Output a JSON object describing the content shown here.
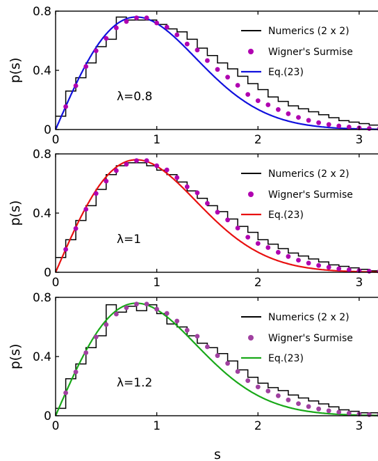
{
  "figure": {
    "xlabel": "s"
  },
  "chart_data": [
    {
      "type": "line",
      "ylabel": "p(s)",
      "xlim": [
        0,
        3.2
      ],
      "ylim": [
        0,
        0.8
      ],
      "xticks": [
        0,
        1,
        2,
        3
      ],
      "yticks": [
        0,
        0.4,
        0.8
      ],
      "annotation": "λ=0.8",
      "legend": [
        "Numerics (2 x 2)",
        "Wigner's Surmise",
        "Eq.(23)"
      ],
      "legend_position": "top-right",
      "curve_color": "#1010dd",
      "marker_color": "#b000b0",
      "curve_params": {
        "a": 1.571,
        "b": 0.785
      },
      "histogram": {
        "bin_width": 0.1,
        "values": [
          0.09,
          0.26,
          0.35,
          0.45,
          0.56,
          0.61,
          0.76,
          0.74,
          0.74,
          0.74,
          0.71,
          0.68,
          0.66,
          0.61,
          0.55,
          0.5,
          0.45,
          0.41,
          0.36,
          0.31,
          0.27,
          0.22,
          0.19,
          0.16,
          0.14,
          0.12,
          0.1,
          0.08,
          0.06,
          0.05,
          0.04,
          0.03
        ]
      },
      "wigner_points": {
        "x": [
          0.1,
          0.2,
          0.3,
          0.4,
          0.5,
          0.6,
          0.7,
          0.8,
          0.9,
          1.0,
          1.1,
          1.2,
          1.3,
          1.4,
          1.5,
          1.6,
          1.7,
          1.8,
          1.9,
          2.0,
          2.1,
          2.2,
          2.3,
          2.4,
          2.5,
          2.6,
          2.7,
          2.8,
          2.9,
          3.0,
          3.1,
          3.2
        ],
        "y": [
          0.155,
          0.296,
          0.426,
          0.532,
          0.616,
          0.687,
          0.73,
          0.755,
          0.755,
          0.72,
          0.692,
          0.64,
          0.578,
          0.537,
          0.466,
          0.406,
          0.354,
          0.299,
          0.237,
          0.195,
          0.167,
          0.135,
          0.107,
          0.082,
          0.062,
          0.046,
          0.034,
          0.024,
          0.017,
          0.011,
          0.007,
          0.005
        ]
      }
    },
    {
      "type": "line",
      "ylabel": "p(s)",
      "xlim": [
        0,
        3.2
      ],
      "ylim": [
        0,
        0.8
      ],
      "xticks": [
        0,
        1,
        2,
        3
      ],
      "yticks": [
        0,
        0.4,
        0.8
      ],
      "annotation": "λ=1",
      "legend": [
        "Numerics (2 x 2)",
        "Wigner's Surmise",
        "Eq.(23)"
      ],
      "legend_position": "top-right",
      "curve_color": "#e81010",
      "marker_color": "#b000b0",
      "curve_params": {
        "a": 1.571,
        "b": 0.785
      },
      "histogram": {
        "bin_width": 0.1,
        "values": [
          0.1,
          0.22,
          0.35,
          0.45,
          0.56,
          0.66,
          0.72,
          0.74,
          0.74,
          0.72,
          0.69,
          0.66,
          0.61,
          0.55,
          0.5,
          0.45,
          0.41,
          0.36,
          0.31,
          0.27,
          0.22,
          0.19,
          0.16,
          0.13,
          0.11,
          0.09,
          0.07,
          0.05,
          0.04,
          0.03,
          0.02,
          0.01
        ]
      },
      "wigner_points": {
        "x": [
          0.1,
          0.2,
          0.3,
          0.4,
          0.5,
          0.6,
          0.7,
          0.8,
          0.9,
          1.0,
          1.1,
          1.2,
          1.3,
          1.4,
          1.5,
          1.6,
          1.7,
          1.8,
          1.9,
          2.0,
          2.1,
          2.2,
          2.3,
          2.4,
          2.5,
          2.6,
          2.7,
          2.8,
          2.9,
          3.0,
          3.1,
          3.2
        ],
        "y": [
          0.155,
          0.296,
          0.426,
          0.532,
          0.616,
          0.687,
          0.73,
          0.755,
          0.755,
          0.72,
          0.692,
          0.64,
          0.578,
          0.537,
          0.466,
          0.406,
          0.354,
          0.299,
          0.237,
          0.195,
          0.167,
          0.135,
          0.107,
          0.082,
          0.062,
          0.046,
          0.034,
          0.024,
          0.017,
          0.011,
          0.007,
          0.005
        ]
      }
    },
    {
      "type": "line",
      "ylabel": "p(s)",
      "xlim": [
        0,
        3.2
      ],
      "ylim": [
        0,
        0.8
      ],
      "xticks": [
        0,
        1,
        2,
        3
      ],
      "yticks": [
        0,
        0.4,
        0.8
      ],
      "annotation": "λ=1.2",
      "legend": [
        "Numerics (2 x 2)",
        "Wigner's Surmise",
        "Eq.(23)"
      ],
      "legend_position": "top-right",
      "curve_color": "#18a818",
      "marker_color": "#a040a0",
      "curve_params": {
        "a": 1.571,
        "b": 0.785
      },
      "histogram": {
        "bin_width": 0.1,
        "values": [
          0.05,
          0.25,
          0.35,
          0.46,
          0.54,
          0.75,
          0.7,
          0.74,
          0.71,
          0.75,
          0.69,
          0.62,
          0.6,
          0.54,
          0.49,
          0.46,
          0.42,
          0.37,
          0.31,
          0.26,
          0.22,
          0.19,
          0.17,
          0.14,
          0.12,
          0.1,
          0.08,
          0.06,
          0.04,
          0.03,
          0.02,
          0.02
        ]
      },
      "wigner_points": {
        "x": [
          0.1,
          0.2,
          0.3,
          0.4,
          0.5,
          0.6,
          0.7,
          0.8,
          0.9,
          1.0,
          1.1,
          1.2,
          1.3,
          1.4,
          1.5,
          1.6,
          1.7,
          1.8,
          1.9,
          2.0,
          2.1,
          2.2,
          2.3,
          2.4,
          2.5,
          2.6,
          2.7,
          2.8,
          2.9,
          3.0,
          3.1,
          3.2
        ],
        "y": [
          0.155,
          0.296,
          0.426,
          0.532,
          0.616,
          0.687,
          0.73,
          0.755,
          0.755,
          0.72,
          0.692,
          0.64,
          0.578,
          0.537,
          0.466,
          0.406,
          0.354,
          0.299,
          0.237,
          0.195,
          0.167,
          0.135,
          0.107,
          0.082,
          0.062,
          0.046,
          0.034,
          0.024,
          0.017,
          0.011,
          0.007,
          0.005
        ]
      }
    }
  ]
}
